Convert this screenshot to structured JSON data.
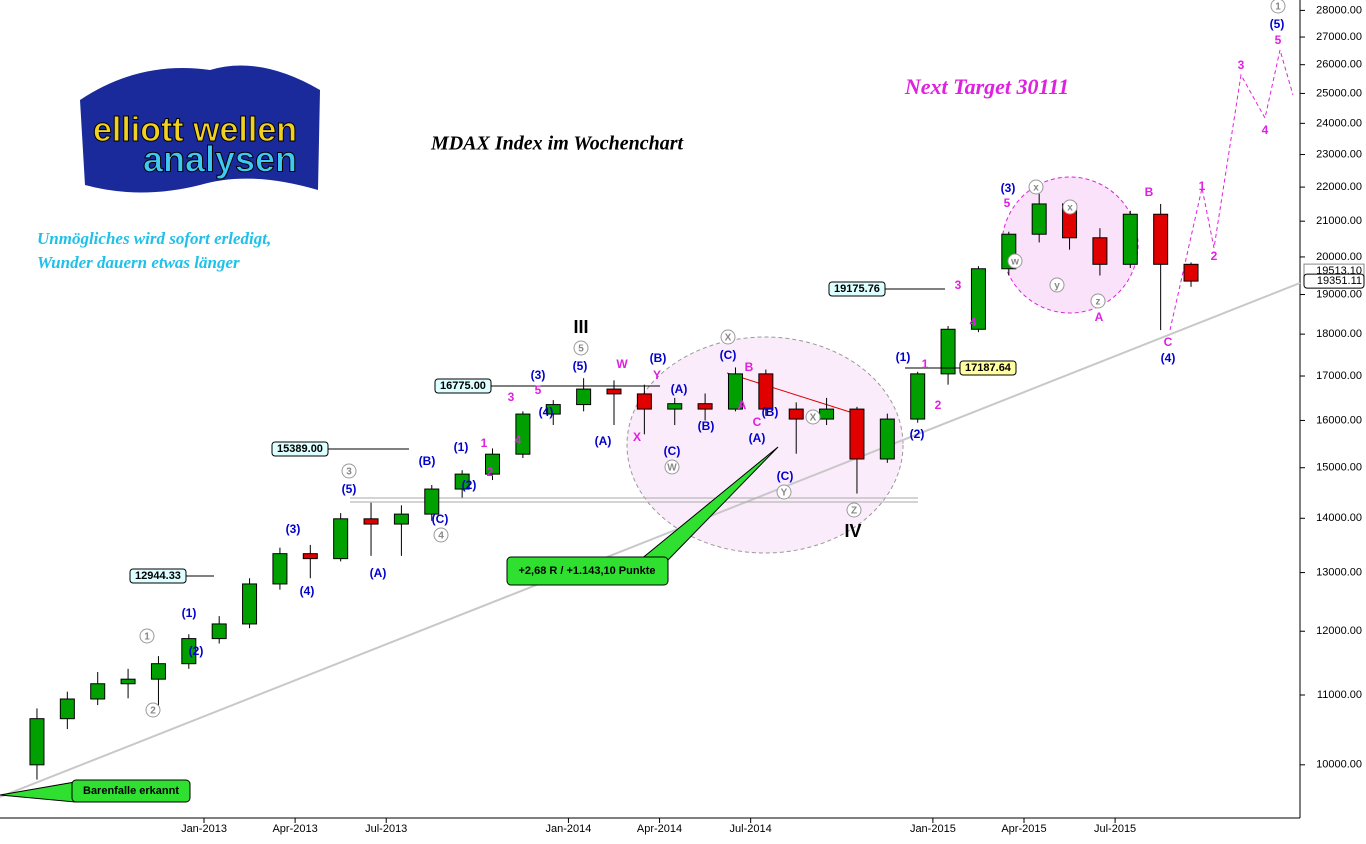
{
  "chart_data": {
    "type": "candlestick",
    "title": "MDAX Index im Wochenchart",
    "target": "Next Target 30111",
    "slogan": [
      "Unmögliches wird sofort erledigt,",
      "Wunder dauern etwas länger"
    ],
    "logo": [
      "elliott wellen",
      "analysen"
    ],
    "log_scale": true,
    "up_color": "#00a000",
    "down_color": "#e00000",
    "x": [
      "2012-07",
      "2012-08",
      "2012-09",
      "2012-10",
      "2012-11",
      "2012-12",
      "2013-01",
      "2013-02",
      "2013-03",
      "2013-04",
      "2013-05",
      "2013-06",
      "2013-07",
      "2013-08",
      "2013-09",
      "2013-10",
      "2013-11",
      "2013-12",
      "2014-01",
      "2014-02",
      "2014-03",
      "2014-04",
      "2014-05",
      "2014-06",
      "2014-07",
      "2014-08",
      "2014-09",
      "2014-10",
      "2014-11",
      "2014-12",
      "2015-01",
      "2015-02",
      "2015-03",
      "2015-04",
      "2015-05",
      "2015-06",
      "2015-07",
      "2015-08",
      "2015-09"
    ],
    "open": [
      10000,
      10650,
      10940,
      11170,
      11240,
      11480,
      11880,
      12120,
      12800,
      13340,
      13250,
      13990,
      13890,
      14080,
      14570,
      14870,
      15280,
      16140,
      16350,
      16700,
      16590,
      16250,
      16370,
      16250,
      17050,
      16250,
      16030,
      16250,
      15180,
      16030,
      17050,
      18120,
      19680,
      20630,
      21500,
      20530,
      19800,
      21200,
      19800
    ],
    "high": [
      10800,
      11050,
      11350,
      11400,
      11600,
      11950,
      12250,
      12900,
      13450,
      13500,
      14100,
      14300,
      14250,
      14650,
      14950,
      15400,
      16200,
      16450,
      16950,
      16900,
      16800,
      16500,
      16600,
      17200,
      17150,
      16400,
      16500,
      16300,
      16150,
      17100,
      18200,
      19750,
      20700,
      21800,
      21600,
      20800,
      21300,
      21500,
      19850
    ],
    "low": [
      9800,
      10500,
      10850,
      10950,
      10800,
      11400,
      11800,
      12050,
      12700,
      12900,
      13200,
      13300,
      13300,
      13950,
      14400,
      14750,
      15200,
      15900,
      16200,
      15900,
      15700,
      15900,
      16000,
      16200,
      16100,
      15290,
      15900,
      14480,
      15100,
      15950,
      16800,
      18050,
      19500,
      20400,
      20200,
      19500,
      19700,
      18100,
      19200
    ],
    "close": [
      10650,
      10940,
      11170,
      11240,
      11480,
      11880,
      12120,
      12800,
      13340,
      13250,
      13990,
      13890,
      14080,
      14570,
      14870,
      15280,
      16140,
      16350,
      16700,
      16590,
      16250,
      16370,
      16250,
      17050,
      16250,
      16030,
      16250,
      15180,
      16030,
      17050,
      18120,
      19680,
      20630,
      21500,
      20530,
      19800,
      21200,
      19800,
      19351.11
    ],
    "last_label": "19351.11",
    "prev_label": "19513.10",
    "ylim": [
      9300,
      28400
    ],
    "yticks": [
      {
        "value": 10000,
        "label": "10000.00"
      },
      {
        "value": 11000,
        "label": "11000.00"
      },
      {
        "value": 12000,
        "label": "12000.00"
      },
      {
        "value": 13000,
        "label": "13000.00"
      },
      {
        "value": 14000,
        "label": "14000.00"
      },
      {
        "value": 15000,
        "label": "15000.00"
      },
      {
        "value": 16000,
        "label": "16000.00"
      },
      {
        "value": 17000,
        "label": "17000.00"
      },
      {
        "value": 18000,
        "label": "18000.00"
      },
      {
        "value": 19000,
        "label": "19000.00"
      },
      {
        "value": 20000,
        "label": "20000.00"
      },
      {
        "value": 21000,
        "label": "21000.00"
      },
      {
        "value": 22000,
        "label": "22000.00"
      },
      {
        "value": 23000,
        "label": "23000.00"
      },
      {
        "value": 24000,
        "label": "24000.00"
      },
      {
        "value": 25000,
        "label": "25000.00"
      },
      {
        "value": 26000,
        "label": "26000.00"
      },
      {
        "value": 27000,
        "label": "27000.00"
      },
      {
        "value": 28000,
        "label": "28000.00"
      }
    ],
    "xticks": [
      {
        "value": "2013-01",
        "label": "Jan-2013"
      },
      {
        "value": "2013-04",
        "label": "Apr-2013"
      },
      {
        "value": "2013-07",
        "label": "Jul-2013"
      },
      {
        "value": "2014-01",
        "label": "Jan-2014"
      },
      {
        "value": "2014-04",
        "label": "Apr-2014"
      },
      {
        "value": "2014-07",
        "label": "Jul-2014"
      },
      {
        "value": "2015-01",
        "label": "Jan-2015"
      },
      {
        "value": "2015-04",
        "label": "Apr-2015"
      },
      {
        "value": "2015-07",
        "label": "Jul-2015"
      }
    ],
    "price_boxes": [
      "12944.33",
      "15389.00",
      "16775.00",
      "19175.76",
      "17187.64"
    ],
    "waves": [
      "(1)",
      "(2)",
      "(3)",
      "(4)",
      "(5)",
      "(A)",
      "(B)",
      "(C)",
      "(1)",
      "(2)",
      "(3)",
      "(4)",
      "(5)",
      "(A)",
      "(B)",
      "(A)",
      "(C)",
      "(B)",
      "(C)",
      "(B)",
      "(A)",
      "(C)",
      "(1)",
      "(2)",
      "(3)",
      "(4)",
      "(5)",
      "1",
      "2",
      "3",
      "4",
      "5",
      "W",
      "Y",
      "X",
      "B",
      "A",
      "C",
      "1",
      "2",
      "3",
      "4",
      "5",
      "A",
      "B",
      "C",
      "1",
      "2",
      "3",
      "4",
      "5",
      "1",
      "2",
      "3",
      "4",
      "5",
      "X",
      "W",
      "X",
      "Y",
      "Z",
      "x",
      "w",
      "x",
      "y",
      "z",
      "1"
    ],
    "degree_labels": [
      "III",
      "IV"
    ],
    "callouts": [
      "+2,68 R / +1.143,10 Punkte",
      "Barenfalle erkannt"
    ]
  }
}
